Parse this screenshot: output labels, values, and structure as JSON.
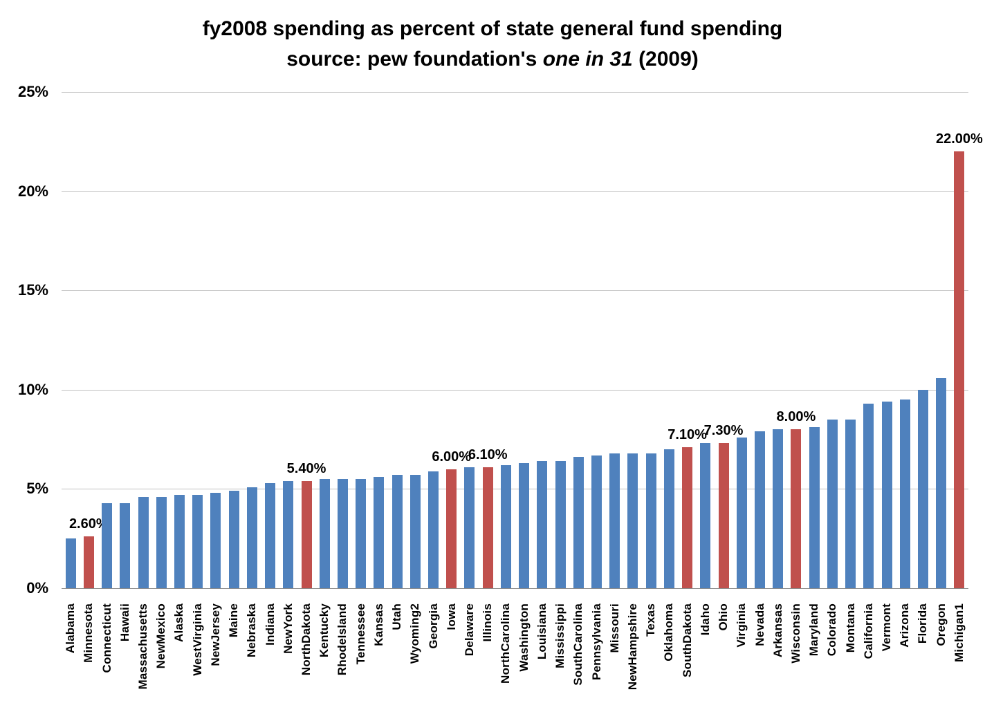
{
  "title": {
    "line1": "fy2008 spending as percent of state general fund spending",
    "line2_prefix": "source: pew foundation's ",
    "line2_italic": "one in 31",
    "line2_suffix": " (2009)"
  },
  "chart_data": {
    "type": "bar",
    "title": "fy2008 spending as percent of state general fund spending",
    "subtitle": "source: pew foundation's one in 31 (2009)",
    "xlabel": "",
    "ylabel": "",
    "ylim": [
      0,
      25
    ],
    "grid": true,
    "legend": false,
    "y_axis": {
      "max": 25,
      "min": 0,
      "step": 5,
      "tick_labels": [
        "25%",
        "20%",
        "15%",
        "10%",
        "5%",
        "0%"
      ]
    },
    "categories": [
      "Alabama",
      "Minnesota",
      "Connecticut",
      "Hawaii",
      "Massachusetts",
      "NewMexico",
      "Alaska",
      "WestVirginia",
      "NewJersey",
      "Maine",
      "Nebraska",
      "Indiana",
      "NewYork",
      "NorthDakota",
      "Kentucky",
      "RhodeIsland",
      "Tennessee",
      "Kansas",
      "Utah",
      "Wyoming2",
      "Georgia",
      "Iowa",
      "Delaware",
      "Illinois",
      "NorthCarolina",
      "Washington",
      "Louisiana",
      "Mississippi",
      "SouthCarolina",
      "Pennsylvania",
      "Missouri",
      "NewHampshire",
      "Texas",
      "Oklahoma",
      "SouthDakota",
      "Idaho",
      "Ohio",
      "Virginia",
      "Nevada",
      "Arkansas",
      "Wisconsin",
      "Maryland",
      "Colorado",
      "Montana",
      "California",
      "Vermont",
      "Arizona",
      "Florida",
      "Oregon",
      "Michigan1"
    ],
    "values": [
      2.5,
      2.6,
      4.3,
      4.3,
      4.6,
      4.6,
      4.7,
      4.7,
      4.8,
      4.9,
      5.1,
      5.3,
      5.4,
      5.4,
      5.5,
      5.5,
      5.5,
      5.6,
      5.7,
      5.7,
      5.9,
      6.0,
      6.1,
      6.1,
      6.2,
      6.3,
      6.4,
      6.4,
      6.6,
      6.7,
      6.8,
      6.8,
      6.8,
      7.0,
      7.1,
      7.3,
      7.3,
      7.6,
      7.9,
      8.0,
      8.0,
      8.1,
      8.5,
      8.5,
      9.3,
      9.4,
      9.5,
      10.0,
      10.6,
      22.0
    ],
    "highlighted_categories": [
      "Minnesota",
      "NorthDakota",
      "Iowa",
      "Illinois",
      "SouthDakota",
      "Ohio",
      "Wisconsin",
      "Michigan1"
    ],
    "data_labels": {
      "Minnesota": "2.60%",
      "NorthDakota": "5.40%",
      "Iowa": "6.00%",
      "Illinois": "6.10%",
      "SouthDakota": "7.10%",
      "Ohio": "7.30%",
      "Wisconsin": "8.00%",
      "Michigan1": "22.00%"
    },
    "colors": {
      "bar_default": "#4F81BD",
      "bar_highlight": "#C0504D",
      "gridline": "#BFBFBF",
      "axis_line": "#8C8C8C",
      "text": "#000000",
      "background": "#FFFFFF"
    }
  }
}
